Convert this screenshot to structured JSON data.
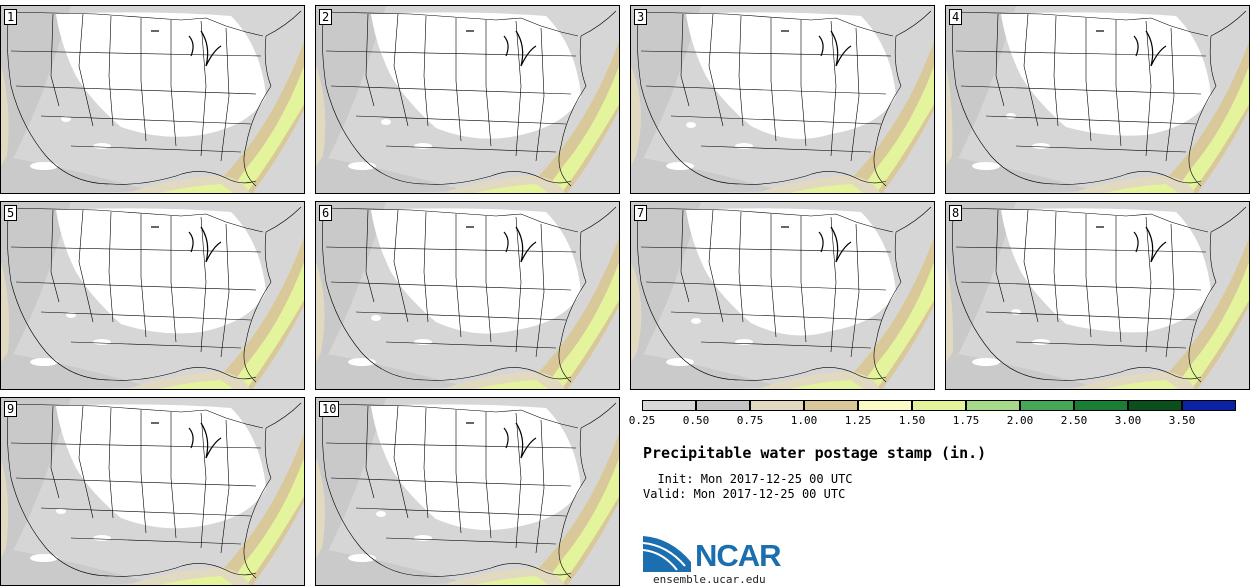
{
  "panels": [
    {
      "label": "1"
    },
    {
      "label": "2"
    },
    {
      "label": "3"
    },
    {
      "label": "4"
    },
    {
      "label": "5"
    },
    {
      "label": "6"
    },
    {
      "label": "7"
    },
    {
      "label": "8"
    },
    {
      "label": "9"
    },
    {
      "label": "10"
    }
  ],
  "legend": {
    "colors": [
      "#d8d8d8",
      "#c4c4c4",
      "#e2dac0",
      "#d9c99a",
      "#fbfbc6",
      "#e3f49c",
      "#a6d98a",
      "#46a857",
      "#1c7e34",
      "#0b4f1d",
      "#0c22a4"
    ],
    "ticks": [
      "0.25",
      "0.50",
      "0.75",
      "1.00",
      "1.25",
      "1.50",
      "1.75",
      "2.00",
      "2.50",
      "3.00",
      "3.50"
    ]
  },
  "title": "Precipitable water postage stamp (in.)",
  "init": "Init: Mon 2017-12-25 00 UTC",
  "valid": "Valid: Mon 2017-12-25 00 UTC",
  "logo": {
    "name": "NCAR",
    "site": "ensemble.ucar.edu"
  }
}
